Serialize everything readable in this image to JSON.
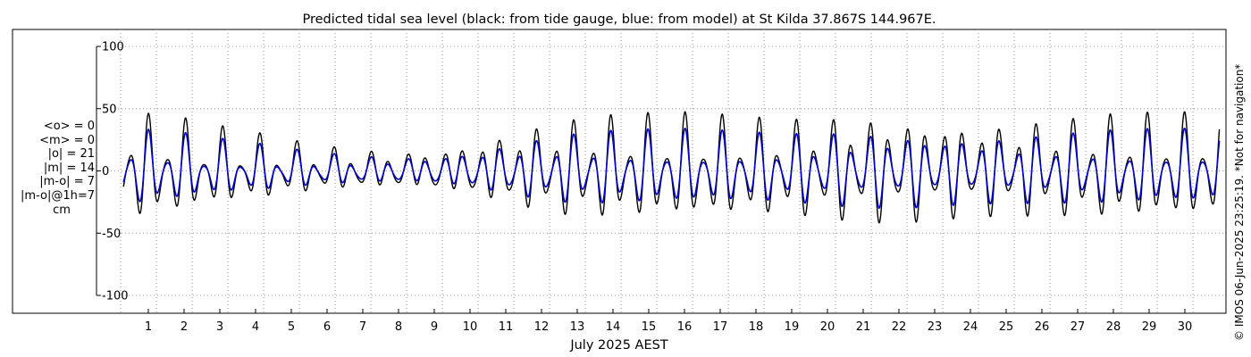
{
  "chart_data": {
    "type": "line",
    "title": "Predicted tidal sea level (black: from tide gauge, blue: from model) at St Kilda 37.867S 144.967E.",
    "xlabel": "July 2025 AEST",
    "ylabel": "",
    "ylim": [
      -105,
      105
    ],
    "xlim": [
      0,
      31
    ],
    "yticks": [
      -100,
      -50,
      0,
      50,
      100
    ],
    "ytick_labels": [
      "-100",
      "-50",
      "0",
      "50",
      "100"
    ],
    "xticks": [
      1,
      2,
      3,
      4,
      5,
      6,
      7,
      8,
      9,
      10,
      11,
      12,
      13,
      14,
      15,
      16,
      17,
      18,
      19,
      20,
      21,
      22,
      23,
      24,
      25,
      26,
      27,
      28,
      29,
      30
    ],
    "xtick_labels": [
      "1",
      "2",
      "3",
      "4",
      "5",
      "6",
      "7",
      "8",
      "9",
      "10",
      "11",
      "12",
      "13",
      "14",
      "15",
      "16",
      "17",
      "18",
      "19",
      "20",
      "21",
      "22",
      "23",
      "24",
      "25",
      "26",
      "27",
      "28",
      "29",
      "30"
    ],
    "grid": true,
    "series": [
      {
        "name": "tide gauge",
        "color": "#000000",
        "amplitude_envelope": [
          [
            0.0,
            1.6,
            0.5,
            0.1
          ],
          [
            0.5,
            1.6,
            0.5,
            0.1
          ],
          [
            1.0,
            1.6,
            0.5,
            0.1
          ],
          [
            2.0,
            1.45,
            0.5,
            0.12
          ],
          [
            3.0,
            1.2,
            0.55,
            0.15
          ],
          [
            4.0,
            1.05,
            0.55,
            0.15
          ],
          [
            5.0,
            0.9,
            0.5,
            0.2
          ],
          [
            6.0,
            0.8,
            0.45,
            0.25
          ],
          [
            7.0,
            0.75,
            0.4,
            0.3
          ],
          [
            8.0,
            0.72,
            0.35,
            0.3
          ],
          [
            9.0,
            0.8,
            0.3,
            0.3
          ],
          [
            10.0,
            1.0,
            0.35,
            0.25
          ],
          [
            11.0,
            1.25,
            0.4,
            0.2
          ],
          [
            12.0,
            1.45,
            0.45,
            0.15
          ],
          [
            13.0,
            1.55,
            0.5,
            0.1
          ],
          [
            14.0,
            1.6,
            0.5,
            0.1
          ],
          [
            15.0,
            1.6,
            0.5,
            0.1
          ],
          [
            16.0,
            1.6,
            0.5,
            0.1
          ],
          [
            17.0,
            1.55,
            0.5,
            0.1
          ],
          [
            18.0,
            1.5,
            0.5,
            0.1
          ],
          [
            19.0,
            1.5,
            0.5,
            0.1
          ],
          [
            20.0,
            1.6,
            0.5,
            0.1
          ],
          [
            21.0,
            1.65,
            0.5,
            0.1
          ],
          [
            22.0,
            1.65,
            0.5,
            0.1
          ],
          [
            23.0,
            1.55,
            0.5,
            0.1
          ],
          [
            24.0,
            1.45,
            0.5,
            0.1
          ],
          [
            25.0,
            1.45,
            0.5,
            0.1
          ],
          [
            26.0,
            1.5,
            0.5,
            0.1
          ],
          [
            27.0,
            1.55,
            0.5,
            0.1
          ],
          [
            28.0,
            1.6,
            0.5,
            0.1
          ],
          [
            29.0,
            1.6,
            0.5,
            0.1
          ],
          [
            30.0,
            1.6,
            0.5,
            0.1
          ],
          [
            31.0,
            1.6,
            0.5,
            0.1
          ]
        ],
        "base_amplitude_cm": 22,
        "scale": 1.0,
        "diurnal_phase": 0.0,
        "semidiurnal_period_days": 0.5175,
        "diurnal_period_days": 1.0758,
        "start_x": 0.05,
        "end_x": 31.0
      },
      {
        "name": "model",
        "color": "#0000cc",
        "amplitude_envelope": "same as tide gauge",
        "base_amplitude_cm": 22,
        "scale": 0.72,
        "diurnal_phase": 0.0,
        "semidiurnal_period_days": 0.5175,
        "diurnal_period_days": 1.0758,
        "start_x": 0.05,
        "end_x": 31.0
      }
    ]
  },
  "stats": {
    "mean_o": "<o> = 0",
    "mean_m": "<m> = 0",
    "abs_o": "|o| = 21",
    "abs_m": "|m| = 14",
    "abs_mo": "|m-o| = 7",
    "abs_mo_1h": "|m-o|@1h=7",
    "unit": "cm"
  },
  "copyright": "© IMOS 06-Jun-2025 23:25:19. *Not for navigation*",
  "colors": {
    "gauge": "#000000",
    "model": "#0000cc",
    "grid": "#b3b3b3",
    "axis": "#000000"
  }
}
